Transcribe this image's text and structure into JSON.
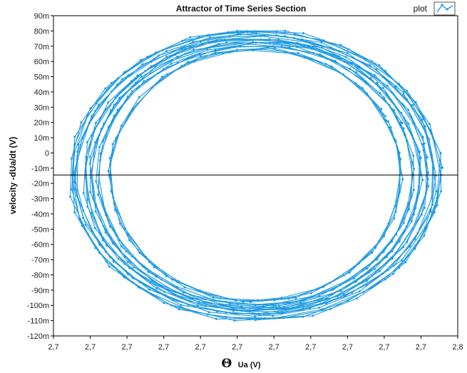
{
  "chart_data": {
    "type": "line",
    "title": "Attractor of Time Series Section",
    "xlabel_symbol": "Θ",
    "xlabel_unit": "Ua (V)",
    "ylabel": "velocity -dUa/dt  (V)",
    "legend": {
      "label": "plot",
      "placement": "top-right"
    },
    "xlim": [
      2.745,
      2.8
    ],
    "ylim": [
      -0.12,
      0.09
    ],
    "x_ticks": [
      {
        "value": 2.745,
        "label": "2,7"
      },
      {
        "value": 2.75,
        "label": "2,7"
      },
      {
        "value": 2.755,
        "label": "2,7"
      },
      {
        "value": 2.76,
        "label": "2,7"
      },
      {
        "value": 2.765,
        "label": "2,7"
      },
      {
        "value": 2.77,
        "label": "2,7"
      },
      {
        "value": 2.775,
        "label": "2,7"
      },
      {
        "value": 2.78,
        "label": "2,7"
      },
      {
        "value": 2.785,
        "label": "2,7"
      },
      {
        "value": 2.79,
        "label": "2,7"
      },
      {
        "value": 2.795,
        "label": "2,7"
      },
      {
        "value": 2.8,
        "label": "2,8"
      }
    ],
    "y_ticks": [
      {
        "value": 0.09,
        "label": "90m"
      },
      {
        "value": 0.08,
        "label": "80m"
      },
      {
        "value": 0.07,
        "label": "70m"
      },
      {
        "value": 0.06,
        "label": "60m"
      },
      {
        "value": 0.05,
        "label": "50m"
      },
      {
        "value": 0.04,
        "label": "40m"
      },
      {
        "value": 0.03,
        "label": "30m"
      },
      {
        "value": 0.02,
        "label": "20m"
      },
      {
        "value": 0.01,
        "label": "10m"
      },
      {
        "value": 0,
        "label": "0"
      },
      {
        "value": -0.01,
        "label": "-10m"
      },
      {
        "value": -0.02,
        "label": "-20m"
      },
      {
        "value": -0.03,
        "label": "-30m"
      },
      {
        "value": -0.04,
        "label": "-40m"
      },
      {
        "value": -0.05,
        "label": "-50m"
      },
      {
        "value": -0.06,
        "label": "-60m"
      },
      {
        "value": -0.07,
        "label": "-70m"
      },
      {
        "value": -0.08,
        "label": "-80m"
      },
      {
        "value": -0.09,
        "label": "-90m"
      },
      {
        "value": -0.1,
        "label": "-100m"
      },
      {
        "value": -0.11,
        "label": "-110m"
      },
      {
        "value": -0.12,
        "label": "-120m"
      }
    ],
    "reference_line_y": -0.0145,
    "series_color": "#1f9ae0",
    "reference_line_color": "#000000",
    "attractor": {
      "center_x": 2.7725,
      "center_y": -0.0145,
      "loops": [
        {
          "rx": 0.0252,
          "ry": 0.0955
        },
        {
          "rx": 0.0234,
          "ry": 0.09
        },
        {
          "rx": 0.0215,
          "ry": 0.086
        },
        {
          "rx": 0.0198,
          "ry": 0.083
        },
        {
          "rx": 0.0245,
          "ry": 0.0925
        },
        {
          "rx": 0.0225,
          "ry": 0.088
        }
      ]
    }
  }
}
